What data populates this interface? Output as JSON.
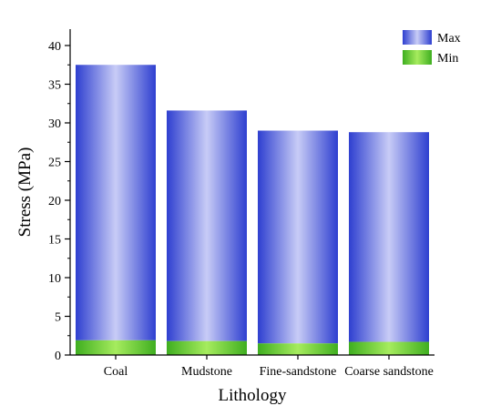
{
  "chart_data": {
    "type": "bar",
    "stacked": true,
    "categories": [
      "Coal",
      "Mudstone",
      "Fine-sandstone",
      "Coarse sandstone"
    ],
    "series": [
      {
        "name": "Min",
        "values": [
          1.9,
          1.8,
          1.5,
          1.7
        ]
      },
      {
        "name": "Max",
        "values": [
          37.5,
          31.6,
          29.0,
          28.8
        ]
      }
    ],
    "xlabel": "Lithology",
    "ylabel": "Stress (MPa)",
    "ylim": [
      0,
      42
    ],
    "yticks": [
      0,
      5,
      10,
      15,
      20,
      25,
      30,
      35,
      40
    ],
    "grid": false,
    "legend_position": "top-right",
    "colors": {
      "max_edge": "#2e3fd0",
      "max_center": "#c8ccf6",
      "min_edge": "#3fae20",
      "min_center": "#a6ec5e"
    }
  }
}
